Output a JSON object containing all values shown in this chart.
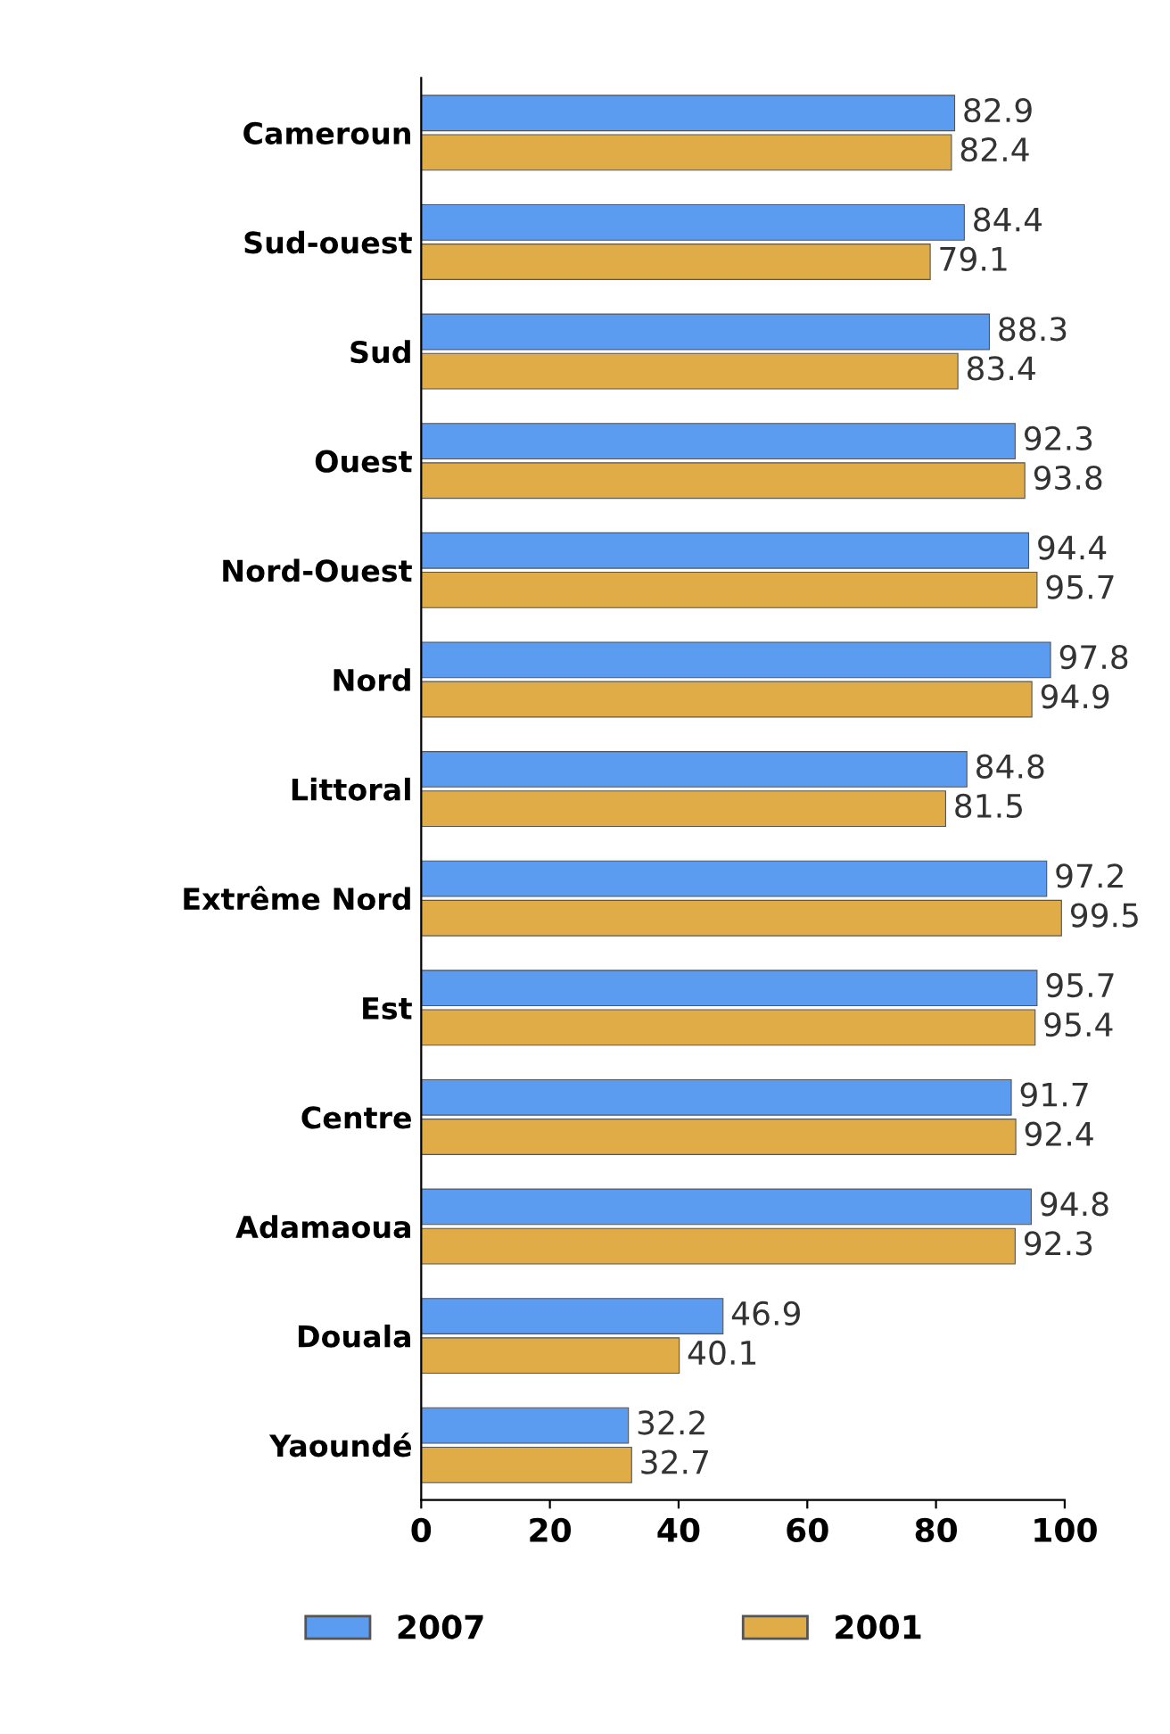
{
  "chart_data": {
    "type": "bar",
    "orientation": "horizontal",
    "categories": [
      "Cameroun",
      "Sud-ouest",
      "Sud",
      "Ouest",
      "Nord-Ouest",
      "Nord",
      "Littoral",
      "Extrême Nord",
      "Est",
      "Centre",
      "Adamaoua",
      "Douala",
      "Yaoundé"
    ],
    "series": [
      {
        "name": "2007",
        "color": "#5b9bf0",
        "values": [
          82.9,
          84.4,
          88.3,
          92.3,
          94.4,
          97.8,
          84.8,
          97.2,
          95.7,
          91.7,
          94.8,
          46.9,
          32.2
        ]
      },
      {
        "name": "2001",
        "color": "#e0ac48",
        "values": [
          82.4,
          79.1,
          83.4,
          93.8,
          95.7,
          94.9,
          81.5,
          99.5,
          95.4,
          92.4,
          92.3,
          40.1,
          32.7
        ]
      }
    ],
    "xlim": [
      0,
      100
    ],
    "xticks": [
      0,
      20,
      40,
      60,
      80,
      100
    ],
    "data_labels": true,
    "grid": false,
    "legend": "bottom"
  }
}
